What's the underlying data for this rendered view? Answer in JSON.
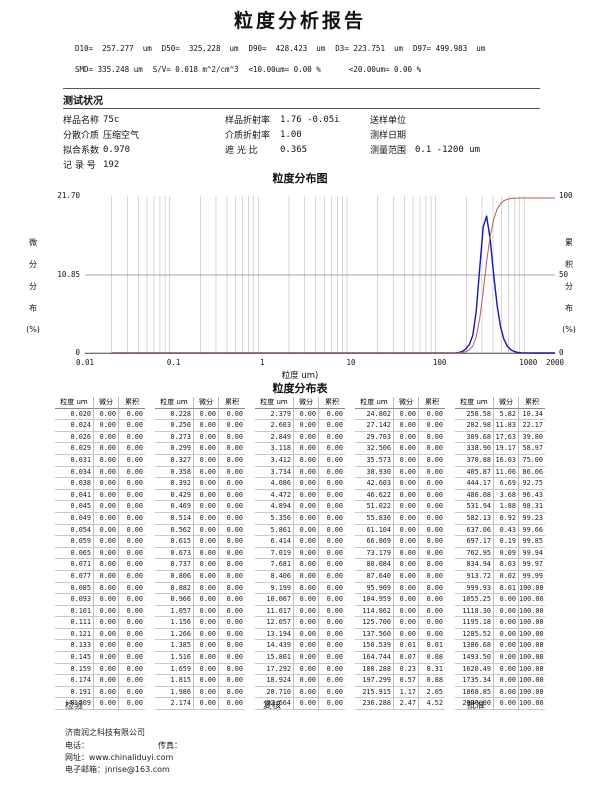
{
  "title": "粒度分析报告",
  "summary": {
    "row1": [
      "D10=  257.277  um",
      "D50=  325.228  um",
      "D90=  428.423  um",
      "D3= 223.751  um",
      "D97= 499.983  um"
    ],
    "row2": [
      "SMD= 335.248 um",
      "S/V= 0.018 m^2/cm^3",
      "<10.00um= 0.00 %",
      "    <20.00um= 0.00 %"
    ]
  },
  "test_conditions": {
    "title": "测试状况",
    "rows": [
      [
        {
          "label": "样品名称",
          "value": "75c"
        },
        {
          "label": "样品折射率",
          "value": "1.76 -0.05i"
        },
        {
          "label": "送样单位",
          "value": ""
        }
      ],
      [
        {
          "label": "分散介质",
          "value": "压缩空气"
        },
        {
          "label": "介质折射率",
          "value": "1.00"
        },
        {
          "label": "测样日期",
          "value": ""
        }
      ],
      [
        {
          "label": "拟合系数",
          "value": "0.970"
        },
        {
          "label": "遮 光 比",
          "value": "0.365"
        },
        {
          "label": "测量范围",
          "value": "0.1 -1200 um"
        }
      ],
      [
        {
          "label": "记 录 号",
          "value": "192"
        }
      ]
    ]
  },
  "chart_data": {
    "type": "line",
    "title": "粒度分布图",
    "xlabel": "粒度 um)",
    "x_scale": "log",
    "x_min": 0.01,
    "x_max": 2000,
    "x_ticks": [
      "0.01",
      "0.1",
      "1",
      "10",
      "100",
      "1000",
      "2000"
    ],
    "grid": {
      "vertical_minor_per_decade": "2-9",
      "horizontal_mid": true
    },
    "left_axis": {
      "label": "微分分布(%)",
      "label_chars": [
        "微",
        "分",
        "分",
        "布",
        "(%)"
      ],
      "max": 21.7,
      "ticks": [
        "21.70",
        "10.85",
        "0"
      ]
    },
    "right_axis": {
      "label": "累积分布(%)",
      "label_chars": [
        "累",
        "积",
        "分",
        "布",
        "(%)"
      ],
      "max": 100,
      "ticks": [
        "100",
        "50",
        "0"
      ]
    },
    "x": [
      0.02,
      100,
      137.56,
      150.539,
      164.744,
      180.288,
      197.299,
      215.915,
      236.288,
      258.58,
      282.98,
      309.68,
      338.9,
      370.88,
      405.87,
      444.17,
      486.08,
      531.94,
      582.13,
      637.06,
      697.17,
      762.95,
      834.94,
      913.72,
      999.93,
      1118.3,
      2000
    ],
    "series": [
      {
        "name": "微分分布",
        "axis": "left",
        "color": "#1516ad",
        "y": [
          0,
          0,
          0,
          0.01,
          0.07,
          0.23,
          0.57,
          1.17,
          2.47,
          5.82,
          11.83,
          17.63,
          19.17,
          16.03,
          11.06,
          6.69,
          3.68,
          1.88,
          0.92,
          0.43,
          0.19,
          0.09,
          0.03,
          0.02,
          0.01,
          0,
          0
        ]
      },
      {
        "name": "累积分布",
        "axis": "right",
        "color": "#b2604e",
        "y": [
          0,
          0,
          0,
          0.01,
          0.08,
          0.31,
          0.88,
          2.05,
          4.52,
          10.34,
          22.17,
          39.8,
          58.97,
          75,
          86.06,
          92.75,
          96.43,
          98.31,
          99.23,
          99.66,
          99.85,
          99.94,
          99.97,
          99.99,
          100,
          100,
          100
        ]
      }
    ]
  },
  "table": {
    "title": "粒度分布表",
    "headers": [
      "粒度 um",
      "微分",
      "累积"
    ],
    "groups": [
      [
        [
          "0.020",
          "0.00",
          "0.00"
        ],
        [
          "0.024",
          "0.00",
          "0.00"
        ],
        [
          "0.026",
          "0.00",
          "0.00"
        ],
        [
          "0.029",
          "0.00",
          "0.00"
        ],
        [
          "0.031",
          "0.00",
          "0.00"
        ],
        [
          "0.034",
          "0.00",
          "0.00"
        ],
        [
          "0.038",
          "0.00",
          "0.00"
        ],
        [
          "0.041",
          "0.00",
          "0.00"
        ],
        [
          "0.045",
          "0.00",
          "0.00"
        ],
        [
          "0.049",
          "0.00",
          "0.00"
        ],
        [
          "0.054",
          "0.00",
          "0.00"
        ],
        [
          "0.059",
          "0.00",
          "0.00"
        ],
        [
          "0.065",
          "0.00",
          "0.00"
        ],
        [
          "0.071",
          "0.00",
          "0.00"
        ],
        [
          "0.077",
          "0.00",
          "0.00"
        ],
        [
          "0.085",
          "0.00",
          "0.00"
        ],
        [
          "0.093",
          "0.00",
          "0.00"
        ],
        [
          "0.101",
          "0.00",
          "0.00"
        ],
        [
          "0.111",
          "0.00",
          "0.00"
        ],
        [
          "0.121",
          "0.00",
          "0.00"
        ],
        [
          "0.133",
          "0.00",
          "0.00"
        ],
        [
          "0.145",
          "0.00",
          "0.00"
        ],
        [
          "0.159",
          "0.00",
          "0.00"
        ],
        [
          "0.174",
          "0.00",
          "0.00"
        ],
        [
          "0.191",
          "0.00",
          "0.00"
        ],
        [
          "0.209",
          "0.00",
          "0.00"
        ]
      ],
      [
        [
          "0.228",
          "0.00",
          "0.00"
        ],
        [
          "0.250",
          "0.00",
          "0.00"
        ],
        [
          "0.273",
          "0.00",
          "0.00"
        ],
        [
          "0.299",
          "0.00",
          "0.00"
        ],
        [
          "0.327",
          "0.00",
          "0.00"
        ],
        [
          "0.358",
          "0.00",
          "0.00"
        ],
        [
          "0.392",
          "0.00",
          "0.00"
        ],
        [
          "0.429",
          "0.00",
          "0.00"
        ],
        [
          "0.469",
          "0.00",
          "0.00"
        ],
        [
          "0.514",
          "0.00",
          "0.00"
        ],
        [
          "0.562",
          "0.00",
          "0.00"
        ],
        [
          "0.615",
          "0.00",
          "0.00"
        ],
        [
          "0.673",
          "0.00",
          "0.00"
        ],
        [
          "0.737",
          "0.00",
          "0.00"
        ],
        [
          "0.806",
          "0.00",
          "0.00"
        ],
        [
          "0.882",
          "0.00",
          "0.00"
        ],
        [
          "0.966",
          "0.00",
          "0.00"
        ],
        [
          "1.057",
          "0.00",
          "0.00"
        ],
        [
          "1.156",
          "0.00",
          "0.00"
        ],
        [
          "1.266",
          "0.00",
          "0.00"
        ],
        [
          "1.385",
          "0.00",
          "0.00"
        ],
        [
          "1.516",
          "0.00",
          "0.00"
        ],
        [
          "1.659",
          "0.00",
          "0.00"
        ],
        [
          "1.815",
          "0.00",
          "0.00"
        ],
        [
          "1.986",
          "0.00",
          "0.00"
        ],
        [
          "2.174",
          "0.00",
          "0.00"
        ]
      ],
      [
        [
          "2.379",
          "0.00",
          "0.00"
        ],
        [
          "2.603",
          "0.00",
          "0.00"
        ],
        [
          "2.849",
          "0.00",
          "0.00"
        ],
        [
          "3.118",
          "0.00",
          "0.00"
        ],
        [
          "3.412",
          "0.00",
          "0.00"
        ],
        [
          "3.734",
          "0.00",
          "0.00"
        ],
        [
          "4.086",
          "0.00",
          "0.00"
        ],
        [
          "4.472",
          "0.00",
          "0.00"
        ],
        [
          "4.894",
          "0.00",
          "0.00"
        ],
        [
          "5.356",
          "0.00",
          "0.00"
        ],
        [
          "5.861",
          "0.00",
          "0.00"
        ],
        [
          "6.414",
          "0.00",
          "0.00"
        ],
        [
          "7.019",
          "0.00",
          "0.00"
        ],
        [
          "7.681",
          "0.00",
          "0.00"
        ],
        [
          "8.406",
          "0.00",
          "0.00"
        ],
        [
          "9.199",
          "0.00",
          "0.00"
        ],
        [
          "10.067",
          "0.00",
          "0.00"
        ],
        [
          "11.017",
          "0.00",
          "0.00"
        ],
        [
          "12.057",
          "0.00",
          "0.00"
        ],
        [
          "13.194",
          "0.00",
          "0.00"
        ],
        [
          "14.439",
          "0.00",
          "0.00"
        ],
        [
          "15.801",
          "0.00",
          "0.00"
        ],
        [
          "17.292",
          "0.00",
          "0.00"
        ],
        [
          "18.924",
          "0.00",
          "0.00"
        ],
        [
          "20.710",
          "0.00",
          "0.00"
        ],
        [
          "22.664",
          "0.00",
          "0.00"
        ]
      ],
      [
        [
          "24.802",
          "0.00",
          "0.00"
        ],
        [
          "27.142",
          "0.00",
          "0.00"
        ],
        [
          "29.703",
          "0.00",
          "0.00"
        ],
        [
          "32.506",
          "0.00",
          "0.00"
        ],
        [
          "35.573",
          "0.00",
          "0.00"
        ],
        [
          "38.930",
          "0.00",
          "0.00"
        ],
        [
          "42.603",
          "0.00",
          "0.00"
        ],
        [
          "46.622",
          "0.00",
          "0.00"
        ],
        [
          "51.022",
          "0.00",
          "0.00"
        ],
        [
          "55.836",
          "0.00",
          "0.00"
        ],
        [
          "61.104",
          "0.00",
          "0.00"
        ],
        [
          "66.869",
          "0.00",
          "0.00"
        ],
        [
          "73.179",
          "0.00",
          "0.00"
        ],
        [
          "80.084",
          "0.00",
          "0.00"
        ],
        [
          "87.640",
          "0.00",
          "0.00"
        ],
        [
          "95.909",
          "0.00",
          "0.00"
        ],
        [
          "104.959",
          "0.00",
          "0.00"
        ],
        [
          "114.862",
          "0.00",
          "0.00"
        ],
        [
          "125.700",
          "0.00",
          "0.00"
        ],
        [
          "137.560",
          "0.00",
          "0.00"
        ],
        [
          "150.539",
          "0.01",
          "0.01"
        ],
        [
          "164.744",
          "0.07",
          "0.08"
        ],
        [
          "180.288",
          "0.23",
          "0.31"
        ],
        [
          "197.299",
          "0.57",
          "0.88"
        ],
        [
          "215.915",
          "1.17",
          "2.05"
        ],
        [
          "236.288",
          "2.47",
          "4.52"
        ]
      ],
      [
        [
          "258.58",
          "5.82",
          "10.34"
        ],
        [
          "282.98",
          "11.83",
          "22.17"
        ],
        [
          "309.68",
          "17.63",
          "39.80"
        ],
        [
          "338.90",
          "19.17",
          "58.97"
        ],
        [
          "370.88",
          "16.03",
          "75.00"
        ],
        [
          "405.87",
          "11.06",
          "86.06"
        ],
        [
          "444.17",
          "6.69",
          "92.75"
        ],
        [
          "486.08",
          "3.68",
          "96.43"
        ],
        [
          "531.94",
          "1.88",
          "98.31"
        ],
        [
          "582.13",
          "0.92",
          "99.23"
        ],
        [
          "637.06",
          "0.43",
          "99.66"
        ],
        [
          "697.17",
          "0.19",
          "99.85"
        ],
        [
          "762.95",
          "0.09",
          "99.94"
        ],
        [
          "834.94",
          "0.03",
          "99.97"
        ],
        [
          "913.72",
          "0.02",
          "99.99"
        ],
        [
          "999.93",
          "0.01",
          "100.00"
        ],
        [
          "1055.25",
          "0.00",
          "100.00"
        ],
        [
          "1118.30",
          "0.00",
          "100.00"
        ],
        [
          "1195.18",
          "0.00",
          "100.00"
        ],
        [
          "1285.52",
          "0.00",
          "100.00"
        ],
        [
          "1386.68",
          "0.00",
          "100.00"
        ],
        [
          "1493.50",
          "0.00",
          "100.00"
        ],
        [
          "1620.49",
          "0.00",
          "100.00"
        ],
        [
          "1735.34",
          "0.00",
          "100.00"
        ],
        [
          "1868.85",
          "0.00",
          "100.00"
        ],
        [
          "2000.00",
          "0.00",
          "100.00"
        ]
      ]
    ]
  },
  "signoff": {
    "inspect": "检验",
    "review": "复核",
    "approve": "批准"
  },
  "footer": {
    "company": "济南润之科技有限公司",
    "phone_label": "电话：",
    "fax_label": "传真：",
    "site_label": "网址：",
    "site": "www.chinaliduyi.com",
    "email_label": "电子邮箱：",
    "email": "jnrise@163.com"
  }
}
